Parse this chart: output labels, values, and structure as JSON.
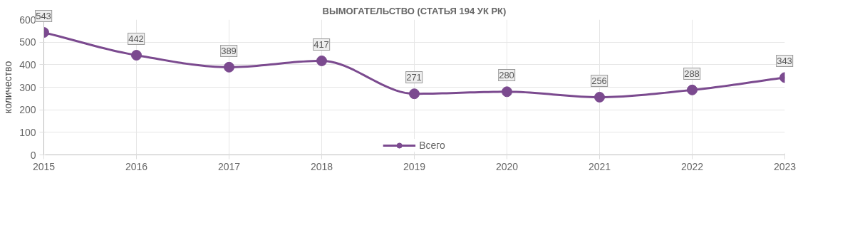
{
  "chart_data": {
    "type": "line",
    "title": "ВЫМОГАТЕЛЬСТВО (СТАТЬЯ 194 УК РК)",
    "ylabel": "количество",
    "x": [
      2015,
      2016,
      2017,
      2018,
      2019,
      2020,
      2021,
      2022,
      2023
    ],
    "series": [
      {
        "name": "Всего",
        "color": "#7b4a8f",
        "values": [
          543,
          442,
          389,
          417,
          271,
          280,
          256,
          288,
          343
        ]
      }
    ],
    "xlim": [
      2015,
      2023
    ],
    "xticks": [
      2015,
      2016,
      2017,
      2018,
      2019,
      2020,
      2021,
      2022,
      2023
    ],
    "ylim": [
      0,
      600
    ],
    "yticks": [
      0,
      100,
      200,
      300,
      400,
      500,
      600
    ],
    "grid": true,
    "legend": "bottom",
    "marker": "circle",
    "line_style": "solid",
    "data_labels": true
  }
}
